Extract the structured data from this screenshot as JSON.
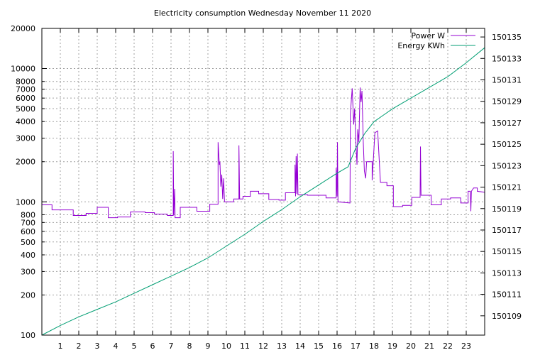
{
  "chart_data": {
    "type": "line",
    "title": "Electricity consumption Wednesday November 11 2020",
    "x_axis": {
      "label": "",
      "range": [
        0,
        24
      ],
      "ticks": [
        1,
        2,
        3,
        4,
        5,
        6,
        7,
        8,
        9,
        10,
        11,
        12,
        13,
        14,
        15,
        16,
        17,
        18,
        19,
        20,
        21,
        22,
        23
      ],
      "tick_labels": [
        "1",
        "2",
        "3",
        "4",
        "5",
        "6",
        "7",
        "8",
        "9",
        "10",
        "11",
        "12",
        "13",
        "14",
        "15",
        "16",
        "17",
        "18",
        "19",
        "20",
        "21",
        "22",
        "23"
      ]
    },
    "y_axis_left": {
      "label": "",
      "scale": "log",
      "range": [
        100,
        20000
      ],
      "ticks": [
        100,
        200,
        300,
        400,
        500,
        600,
        700,
        800,
        1000,
        2000,
        3000,
        4000,
        5000,
        6000,
        7000,
        8000,
        10000,
        20000
      ],
      "tick_labels": [
        "100",
        "200",
        "300",
        "400",
        "500",
        "600",
        "700",
        "800",
        "1000",
        "2000",
        "3000",
        "4000",
        "5000",
        "6000",
        "7000",
        "8000",
        "10000",
        "20000"
      ]
    },
    "y_axis_right": {
      "label": "",
      "scale": "linear",
      "range": [
        150107.2,
        150135.8
      ],
      "ticks": [
        150109,
        150111,
        150113,
        150115,
        150117,
        150119,
        150121,
        150123,
        150125,
        150127,
        150129,
        150131,
        150133,
        150135
      ],
      "tick_labels": [
        "150109",
        "150111",
        "150113",
        "150115",
        "150117",
        "150119",
        "150121",
        "150123",
        "150125",
        "150127",
        "150129",
        "150131",
        "150133",
        "150135"
      ]
    },
    "grid": true,
    "legend_position": "top-right",
    "series": [
      {
        "name": "Power W",
        "axis": "left",
        "color": "#9400d3",
        "points": [
          [
            0,
            950
          ],
          [
            0.55,
            950
          ],
          [
            0.55,
            870
          ],
          [
            1.7,
            870
          ],
          [
            1.7,
            790
          ],
          [
            2.4,
            790
          ],
          [
            2.4,
            820
          ],
          [
            3,
            820
          ],
          [
            3,
            910
          ],
          [
            3.6,
            910
          ],
          [
            3.6,
            760
          ],
          [
            4.1,
            760
          ],
          [
            4.1,
            770
          ],
          [
            4.8,
            770
          ],
          [
            4.8,
            840
          ],
          [
            5.6,
            840
          ],
          [
            5.6,
            830
          ],
          [
            6.1,
            830
          ],
          [
            6.1,
            810
          ],
          [
            6.8,
            810
          ],
          [
            6.8,
            790
          ],
          [
            7.12,
            790
          ],
          [
            7.12,
            2400
          ],
          [
            7.15,
            800
          ],
          [
            7.2,
            1250
          ],
          [
            7.22,
            760
          ],
          [
            7.5,
            760
          ],
          [
            7.5,
            910
          ],
          [
            8.4,
            910
          ],
          [
            8.4,
            850
          ],
          [
            9.1,
            850
          ],
          [
            9.1,
            960
          ],
          [
            9.55,
            960
          ],
          [
            9.55,
            2800
          ],
          [
            9.62,
            1900
          ],
          [
            9.65,
            2000
          ],
          [
            9.7,
            1300
          ],
          [
            9.75,
            1600
          ],
          [
            9.8,
            1050
          ],
          [
            9.85,
            1500
          ],
          [
            9.9,
            1000
          ],
          [
            10.4,
            1000
          ],
          [
            10.4,
            1050
          ],
          [
            10.68,
            1050
          ],
          [
            10.68,
            2650
          ],
          [
            10.72,
            1050
          ],
          [
            10.9,
            1050
          ],
          [
            10.9,
            1100
          ],
          [
            11.3,
            1100
          ],
          [
            11.3,
            1200
          ],
          [
            11.75,
            1200
          ],
          [
            11.75,
            1150
          ],
          [
            12.3,
            1150
          ],
          [
            12.3,
            1040
          ],
          [
            12.85,
            1040
          ],
          [
            12.85,
            1030
          ],
          [
            13.2,
            1030
          ],
          [
            13.2,
            1170
          ],
          [
            13.72,
            1170
          ],
          [
            13.72,
            1900
          ],
          [
            13.75,
            1100
          ],
          [
            13.78,
            2200
          ],
          [
            13.82,
            1150
          ],
          [
            13.85,
            2300
          ],
          [
            13.88,
            1130
          ],
          [
            14.4,
            1130
          ],
          [
            14.4,
            1120
          ],
          [
            15.4,
            1120
          ],
          [
            15.4,
            1070
          ],
          [
            15.95,
            1070
          ],
          [
            15.95,
            1800
          ],
          [
            16,
            1100
          ],
          [
            16.02,
            2800
          ],
          [
            16.05,
            1000
          ],
          [
            16.7,
            980
          ],
          [
            16.72,
            4500
          ],
          [
            16.78,
            6000
          ],
          [
            16.82,
            7100
          ],
          [
            16.86,
            5200
          ],
          [
            16.9,
            3800
          ],
          [
            16.95,
            5000
          ],
          [
            17.02,
            2800
          ],
          [
            17.08,
            1900
          ],
          [
            17.12,
            3500
          ],
          [
            17.18,
            2800
          ],
          [
            17.25,
            7200
          ],
          [
            17.3,
            5600
          ],
          [
            17.35,
            6800
          ],
          [
            17.42,
            2800
          ],
          [
            17.48,
            1700
          ],
          [
            17.55,
            1500
          ],
          [
            17.6,
            2000
          ],
          [
            17.9,
            2000
          ],
          [
            17.9,
            1450
          ],
          [
            18.05,
            3300
          ],
          [
            18.2,
            3400
          ],
          [
            18.35,
            1400
          ],
          [
            18.7,
            1400
          ],
          [
            18.7,
            1320
          ],
          [
            19.05,
            1320
          ],
          [
            19.05,
            920
          ],
          [
            19.55,
            920
          ],
          [
            19.55,
            940
          ],
          [
            20.05,
            940
          ],
          [
            20.05,
            1080
          ],
          [
            20.5,
            1080
          ],
          [
            20.52,
            2600
          ],
          [
            20.55,
            1120
          ],
          [
            21.1,
            1120
          ],
          [
            21.1,
            950
          ],
          [
            21.65,
            950
          ],
          [
            21.65,
            1050
          ],
          [
            22.15,
            1050
          ],
          [
            22.15,
            1070
          ],
          [
            22.7,
            1070
          ],
          [
            22.7,
            980
          ],
          [
            23.1,
            980
          ],
          [
            23.1,
            1200
          ],
          [
            23.22,
            1200
          ],
          [
            23.25,
            850
          ],
          [
            23.28,
            1200
          ],
          [
            23.4,
            1270
          ],
          [
            23.6,
            1270
          ],
          [
            23.6,
            1200
          ],
          [
            24,
            1180
          ]
        ]
      },
      {
        "name": "Energy KWh",
        "axis": "right",
        "color": "#009e73",
        "points": [
          [
            0,
            150107.2
          ],
          [
            1,
            150108.1
          ],
          [
            2,
            150108.9
          ],
          [
            3,
            150109.6
          ],
          [
            4,
            150110.3
          ],
          [
            5,
            150111.1
          ],
          [
            6,
            150111.9
          ],
          [
            7,
            150112.7
          ],
          [
            8,
            150113.5
          ],
          [
            9,
            150114.4
          ],
          [
            10,
            150115.5
          ],
          [
            11,
            150116.6
          ],
          [
            12,
            150117.8
          ],
          [
            13,
            150118.9
          ],
          [
            14,
            150120.1
          ],
          [
            15,
            150121.2
          ],
          [
            16,
            150122.3
          ],
          [
            16.6,
            150122.9
          ],
          [
            17,
            150124.6
          ],
          [
            17.5,
            150126
          ],
          [
            18,
            150127.1
          ],
          [
            18.5,
            150127.7
          ],
          [
            19,
            150128.3
          ],
          [
            20,
            150129.3
          ],
          [
            21,
            150130.3
          ],
          [
            22,
            150131.3
          ],
          [
            23,
            150132.6
          ],
          [
            24,
            150134
          ]
        ]
      }
    ]
  }
}
